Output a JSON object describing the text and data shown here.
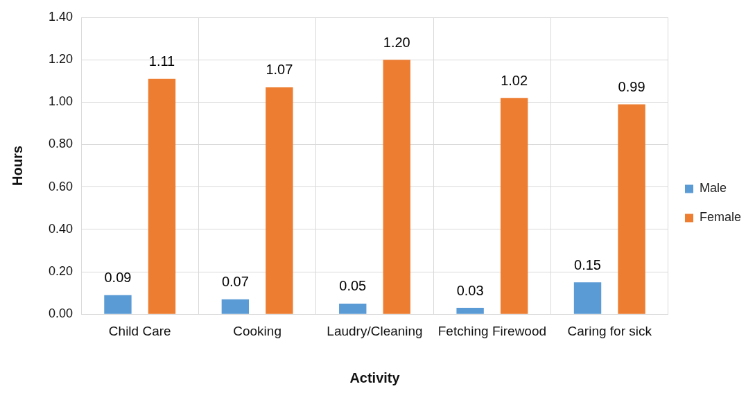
{
  "chart_data": {
    "type": "bar",
    "xlabel": "Activity",
    "ylabel": "Hours",
    "categories": [
      "Child Care",
      "Cooking",
      "Laudry/Cleaning",
      "Fetching Firewood",
      "Caring for sick"
    ],
    "series": [
      {
        "name": "Male",
        "color": "#5b9bd5",
        "values": [
          0.09,
          0.07,
          0.05,
          0.03,
          0.15
        ],
        "value_labels": [
          "0.09",
          "0.07",
          "0.05",
          "0.03",
          "0.15"
        ]
      },
      {
        "name": "Female",
        "color": "#ed7d31",
        "values": [
          1.11,
          1.07,
          1.2,
          1.02,
          0.99
        ],
        "value_labels": [
          "1.11",
          "1.07",
          "1.20",
          "1.02",
          "0.99"
        ]
      }
    ],
    "ylim": [
      0,
      1.4
    ],
    "yticks": [
      {
        "value": 0,
        "label": "0.00"
      },
      {
        "value": 0.2,
        "label": "0.20"
      },
      {
        "value": 0.4,
        "label": "0.40"
      },
      {
        "value": 0.6,
        "label": "0.60"
      },
      {
        "value": 0.8,
        "label": "0.80"
      },
      {
        "value": 1,
        "label": "1.00"
      },
      {
        "value": 1.2,
        "label": "1.20"
      },
      {
        "value": 1.4,
        "label": "1.40"
      }
    ],
    "grid": true,
    "legend": "right"
  }
}
